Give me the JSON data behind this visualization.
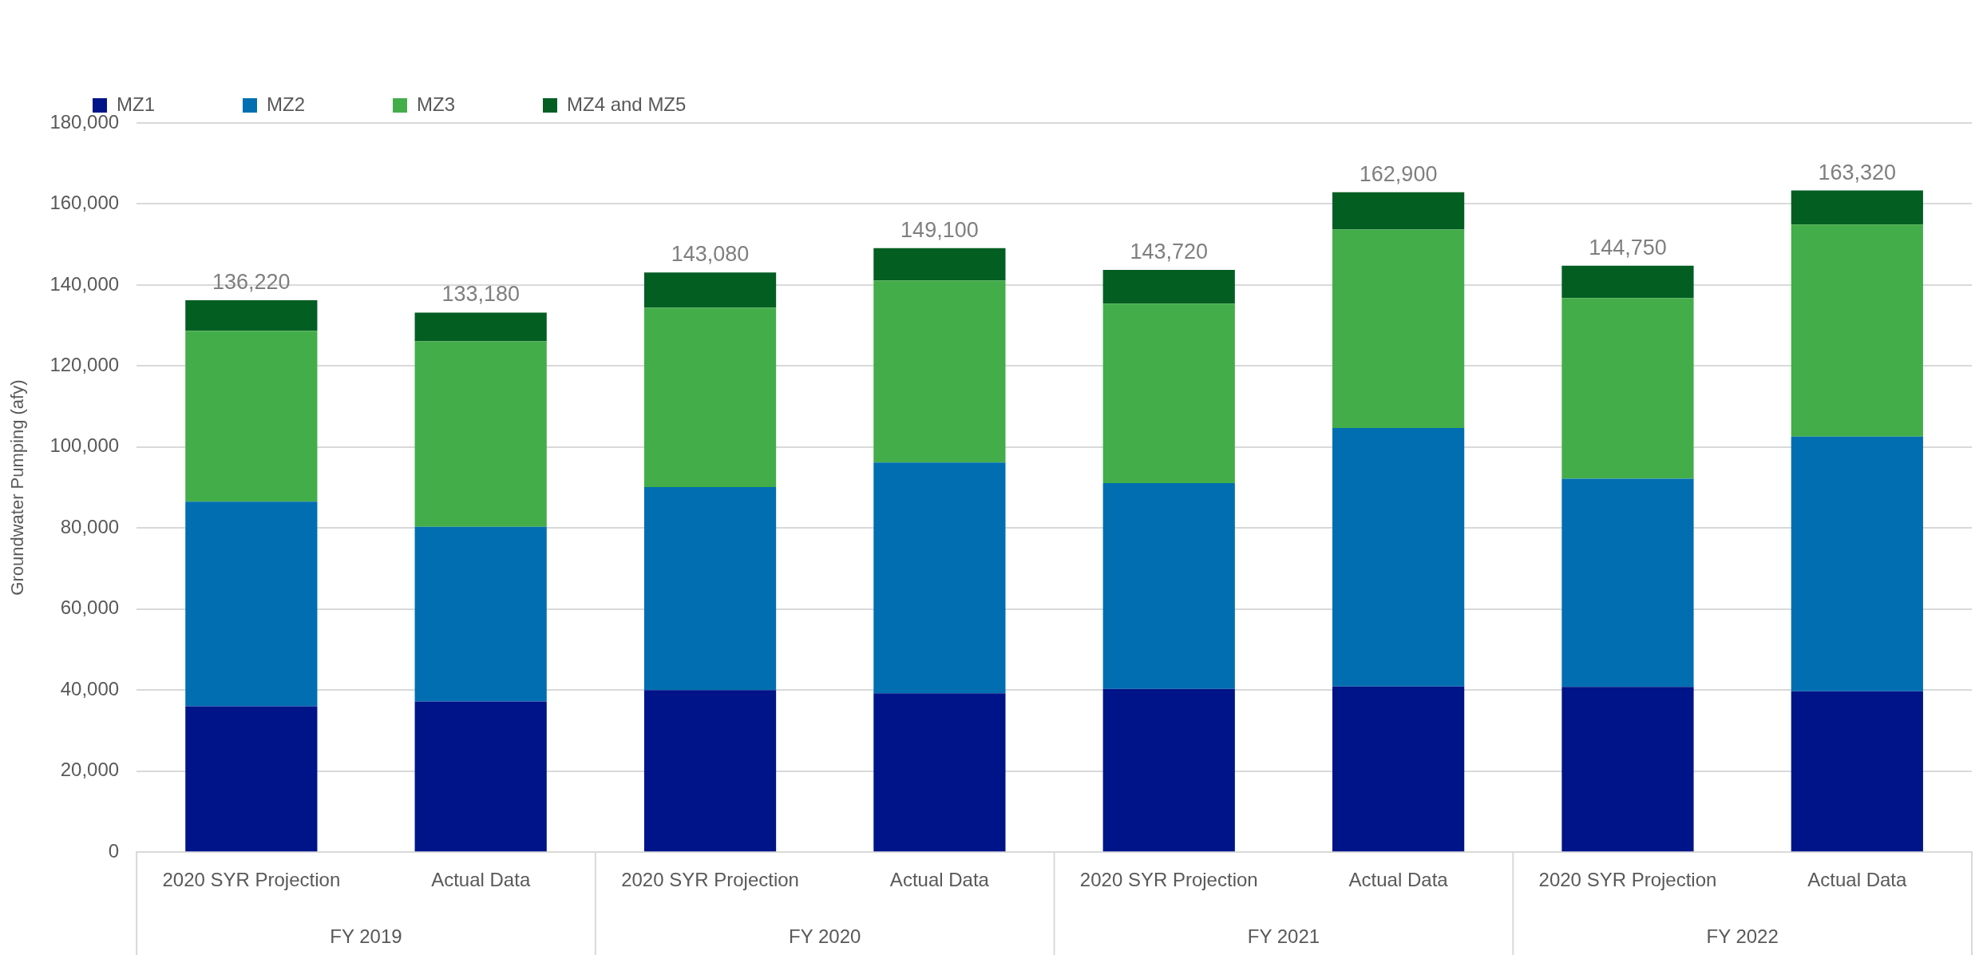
{
  "chart_data": {
    "type": "bar",
    "stacked": true,
    "ylabel": "Groundwater Pumping (afy)",
    "categories": [
      "2020 SYR Projection",
      "Actual Data",
      "2020 SYR Projection",
      "Actual Data",
      "2020 SYR Projection",
      "Actual Data",
      "2020 SYR Projection",
      "Actual Data"
    ],
    "series": [
      {
        "name": "MZ1",
        "color": "#001489",
        "values": [
          36000,
          37200,
          40000,
          39200,
          40300,
          40900,
          40800,
          39700
        ]
      },
      {
        "name": "MZ2",
        "color": "#006eb0",
        "values": [
          50500,
          43100,
          50100,
          57000,
          50800,
          63800,
          51400,
          62900
        ]
      },
      {
        "name": "MZ3",
        "color": "#43ad4a",
        "values": [
          42200,
          45800,
          44300,
          44900,
          44300,
          49000,
          44600,
          52300
        ]
      },
      {
        "name": "MZ4 and MZ5",
        "color": "#035e22",
        "values": [
          7520,
          7080,
          8680,
          8000,
          8320,
          9200,
          7950,
          8420
        ]
      }
    ],
    "totals": [
      "136,220",
      "133,180",
      "143,080",
      "149,100",
      "143,720",
      "162,900",
      "144,750",
      "163,320"
    ],
    "annotations": [
      "FY 2019",
      "FY 2020",
      "FY 2021",
      "FY 2022"
    ],
    "ylim": [
      0,
      180000
    ],
    "yticks": [
      0,
      {
        "value": 20000,
        "label": "20,000"
      },
      {
        "value": 40000,
        "label": "40,000"
      },
      {
        "value": 60000,
        "label": "60,000"
      },
      {
        "value": 80000,
        "label": "80,000"
      },
      {
        "value": 100000,
        "label": "100,000"
      },
      {
        "value": 120000,
        "label": "120,000"
      },
      {
        "value": 140000,
        "label": "140,000"
      },
      {
        "value": 160000,
        "label": "160,000"
      },
      {
        "value": 180000,
        "label": "180,000"
      }
    ],
    "grid": "y",
    "legend": "top left"
  }
}
